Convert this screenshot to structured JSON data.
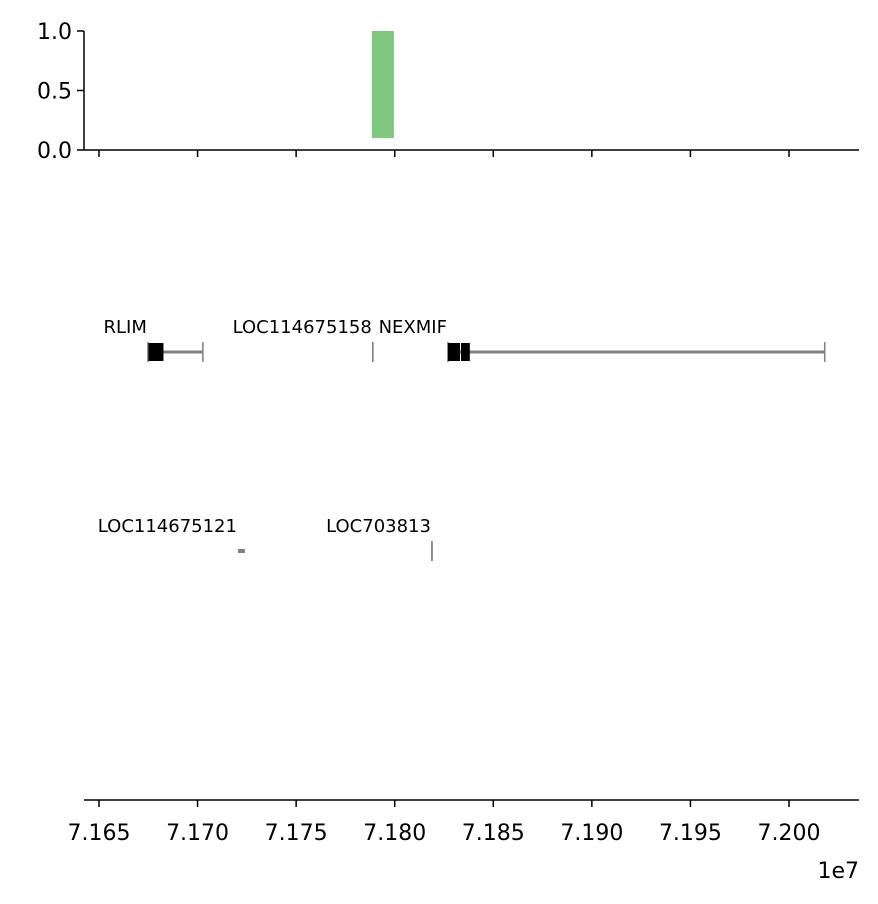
{
  "chart_data": [
    {
      "type": "bar",
      "x_start": [
        7.17884
      ],
      "x_end": [
        7.17996
      ],
      "bottom": [
        0.1
      ],
      "values": [
        1.0
      ],
      "color": "#80c880",
      "xlim": [
        7.16424,
        7.20355
      ],
      "ylim": [
        0,
        1
      ],
      "yticks": [
        {
          "value": 0,
          "label": "0.0"
        },
        {
          "value": 0.5,
          "label": "0.5"
        },
        {
          "value": 1,
          "label": "1.0"
        }
      ]
    },
    {
      "type": "gene-track",
      "xlim": [
        7.16424,
        7.20355
      ],
      "xticks": [
        {
          "value": 7.165,
          "label": "7.165"
        },
        {
          "value": 7.17,
          "label": "7.170"
        },
        {
          "value": 7.175,
          "label": "7.175"
        },
        {
          "value": 7.18,
          "label": "7.180"
        },
        {
          "value": 7.185,
          "label": "7.185"
        },
        {
          "value": 7.19,
          "label": "7.190"
        },
        {
          "value": 7.195,
          "label": "7.195"
        },
        {
          "value": 7.2,
          "label": "7.200"
        }
      ],
      "x_offset_label": "1e7",
      "line_color": "#808080",
      "exon_color": "#000000",
      "genes": [
        {
          "name": "RLIM",
          "start": 7.16748,
          "end": 7.17027,
          "row": 0,
          "exons": [
            [
              7.16751,
              7.16827
            ]
          ]
        },
        {
          "name": "LOC114675158",
          "start": 7.17889,
          "end": 7.17889,
          "row": 0,
          "exons": []
        },
        {
          "name": "NEXMIF",
          "start": 7.1827,
          "end": 7.20181,
          "row": 0,
          "exons": [
            [
              7.1827,
              7.18331
            ],
            [
              7.18336,
              7.18381
            ]
          ]
        },
        {
          "name": "LOC114675121",
          "start": 7.17205,
          "end": 7.1724,
          "row": 1,
          "exons": []
        },
        {
          "name": "LOC703813",
          "start": 7.18189,
          "end": 7.18189,
          "row": 1,
          "exons": []
        }
      ]
    }
  ]
}
